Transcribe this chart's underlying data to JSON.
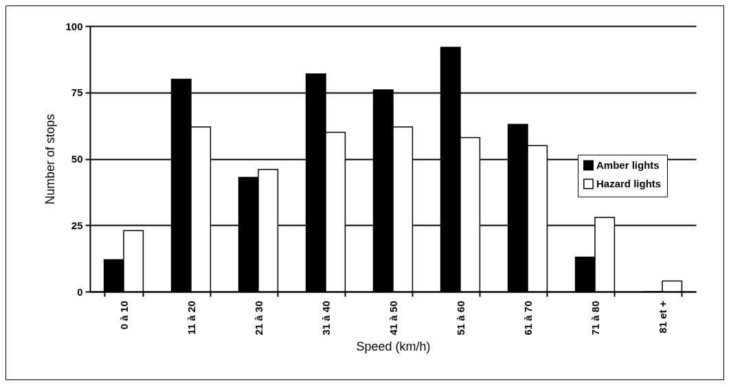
{
  "chart_data": {
    "type": "bar",
    "xlabel": "Speed (km/h)",
    "ylabel": "Number of stops",
    "categories": [
      "0 à 10",
      "11 à 20",
      "21 à 30",
      "31 à 40",
      "41 à 50",
      "51 à 60",
      "61 à 70",
      "71 à 80",
      "81 et +"
    ],
    "series": [
      {
        "name": "Amber lights",
        "color": "#000000",
        "values": [
          12,
          80,
          43,
          82,
          76,
          92,
          63,
          13,
          0
        ]
      },
      {
        "name": "Hazard lights",
        "color": "#ffffff",
        "values": [
          23,
          62,
          46,
          60,
          62,
          58,
          55,
          28,
          4
        ]
      }
    ],
    "ylim": [
      0,
      100
    ],
    "yticks": [
      0,
      25,
      50,
      75,
      100
    ],
    "grid": "y",
    "legend": "right"
  }
}
